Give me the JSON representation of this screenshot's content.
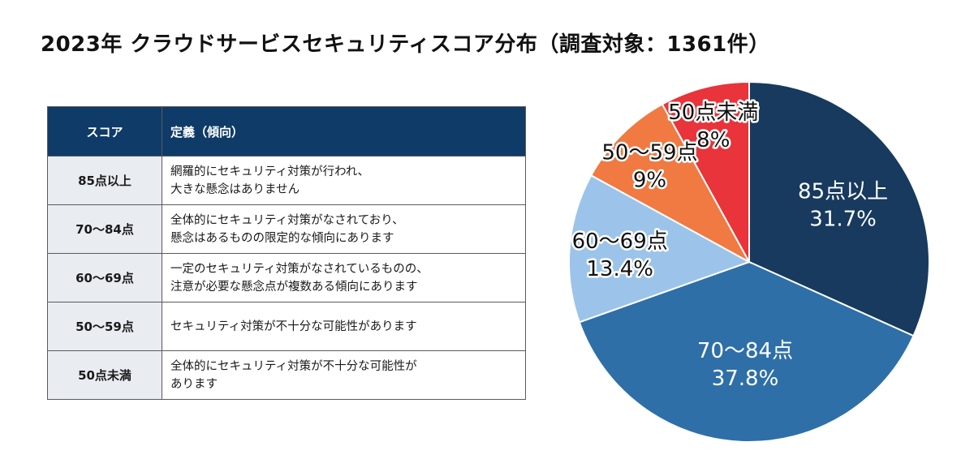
{
  "title": "2023年 クラウドサービスセキュリティスコア分布（調査対象：1361件）",
  "table": {
    "headers": {
      "score": "スコア",
      "definition": "定義（傾向）"
    },
    "rows": [
      {
        "score": "85点以上",
        "definition": "網羅的にセキュリティ対策が行われ、\n大きな懸念はありません"
      },
      {
        "score": "70〜84点",
        "definition": "全体的にセキュリティ対策がなされており、\n懸念はあるものの限定的な傾向にあります"
      },
      {
        "score": "60〜69点",
        "definition": "一定のセキュリティ対策がなされているものの、\n注意が必要な懸念点が複数ある傾向にあります"
      },
      {
        "score": "50〜59点",
        "definition": "セキュリティ対策が不十分な可能性があります"
      },
      {
        "score": "50点未満",
        "definition": "全体的にセキュリティ対策が不十分な可能性が\nあります"
      }
    ]
  },
  "chart_data": {
    "type": "pie",
    "title": "2023年 クラウドサービスセキュリティスコア分布（調査対象：1361件）",
    "slices": [
      {
        "label": "85点以上",
        "value": 31.7,
        "value_label": "31.7%",
        "color": "#173a5e"
      },
      {
        "label": "70〜84点",
        "value": 37.8,
        "value_label": "37.8%",
        "color": "#2e6fa8"
      },
      {
        "label": "60〜69点",
        "value": 13.4,
        "value_label": "13.4%",
        "color": "#9cc4ea"
      },
      {
        "label": "50〜59点",
        "value": 9,
        "value_label": "9%",
        "color": "#f07a42"
      },
      {
        "label": "50点未満",
        "value": 8,
        "value_label": "8%",
        "color": "#e8343a"
      }
    ],
    "start_angle_deg": 0,
    "direction": "clockwise",
    "legend": "none"
  }
}
